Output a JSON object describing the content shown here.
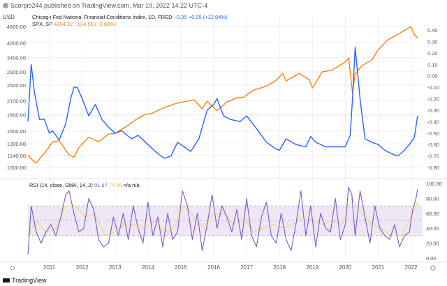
{
  "header": {
    "published": "Scorpio244 published on TradingView.com, Mar 19, 2022 14:22 UTC-4",
    "currency": "USD"
  },
  "legend": {
    "nfci": {
      "name": "Chicago Fed National Financial Conditions Index, 1D, FRED",
      "value": "−0.35",
      "change": "+0.05 (+12.04%)",
      "color": "#2962ff"
    },
    "spx": {
      "name": "SPX, SP",
      "value": "4204.32",
      "change": "−124.56 (−2.88%)",
      "color": "#ff7f0e"
    },
    "rsi": {
      "name": "RSI (14, close, SMA, 14, 2)",
      "value1": "91.67",
      "value2": "74.86",
      "value3": "n/a",
      "value4": "n/a",
      "color": "#7e57c2",
      "ma_color": "#f5d56b"
    }
  },
  "footer": {
    "brand": "TradingView"
  },
  "colors": {
    "grid": "#eeeeee",
    "rsi_band": "#ede7f6",
    "text": "#555555"
  },
  "chart_data": [
    {
      "type": "line",
      "left_axis": {
        "scale": "log",
        "ticks": [
          1000,
          1140,
          1300,
          1500,
          1800,
          2100,
          2500,
          2900,
          3400,
          4000,
          4800
        ],
        "tick_labels": [
          "1000.00",
          "1140.00",
          "1300.00",
          "1500.00",
          "1800.00",
          "2100.00",
          "2500.00",
          "2900.00",
          "3400.00",
          "4000.00",
          "4800.00"
        ]
      },
      "right_axis": {
        "ticks": [
          0.4,
          0.3,
          0.2,
          0.1,
          0.0,
          -0.1,
          -0.2,
          -0.3,
          -0.4,
          -0.5,
          -0.6,
          -0.7,
          -0.8
        ],
        "tick_labels": [
          "0.40",
          "0.30",
          "0.20",
          "0.10",
          "0.00",
          "-0.10",
          "-0.20",
          "-0.30",
          "-0.40",
          "-0.50",
          "-0.60",
          "-0.70",
          "-0.80"
        ]
      },
      "x_ticks": [
        "2011",
        "2012",
        "2013",
        "2014",
        "2015",
        "2016",
        "2017",
        "2018",
        "2019",
        "2020",
        "2021",
        "2022"
      ],
      "x_tick_years": [
        2011,
        2012,
        2013,
        2014,
        2015,
        2016,
        2017,
        2018,
        2019,
        2020,
        2021,
        2022
      ],
      "x_range": [
        2010.35,
        2022.35
      ],
      "series": [
        {
          "name": "SPX",
          "axis": "left",
          "color": "#ff7f0e",
          "x": [
            2010.35,
            2010.5,
            2010.6,
            2010.9,
            2011.1,
            2011.3,
            2011.6,
            2011.75,
            2011.9,
            2012.2,
            2012.5,
            2012.8,
            2013.0,
            2013.4,
            2013.6,
            2013.9,
            2014.1,
            2014.5,
            2014.9,
            2015.4,
            2015.65,
            2015.8,
            2016.1,
            2016.4,
            2016.7,
            2016.9,
            2017.2,
            2017.6,
            2017.9,
            2018.1,
            2018.2,
            2018.6,
            2018.9,
            2019.0,
            2019.3,
            2019.6,
            2020.0,
            2020.1,
            2020.22,
            2020.3,
            2020.5,
            2020.8,
            2021.0,
            2021.3,
            2021.6,
            2021.9,
            2022.0,
            2022.1,
            2022.2
          ],
          "y": [
            1150,
            1080,
            1050,
            1200,
            1330,
            1345,
            1150,
            1120,
            1250,
            1400,
            1330,
            1450,
            1460,
            1600,
            1690,
            1800,
            1820,
            1950,
            2050,
            2120,
            1920,
            2090,
            1880,
            2070,
            2170,
            2180,
            2360,
            2470,
            2640,
            2850,
            2620,
            2850,
            2650,
            2420,
            2900,
            2950,
            3240,
            3380,
            2300,
            2830,
            3100,
            3300,
            3700,
            4150,
            4400,
            4700,
            4790,
            4400,
            4204
          ]
        },
        {
          "name": "NFCI",
          "axis": "right",
          "color": "#2962ff",
          "x": [
            2010.35,
            2010.45,
            2010.55,
            2010.7,
            2010.85,
            2011.0,
            2011.1,
            2011.3,
            2011.5,
            2011.65,
            2011.75,
            2011.85,
            2012.0,
            2012.2,
            2012.4,
            2012.6,
            2012.8,
            2013.0,
            2013.2,
            2013.5,
            2013.7,
            2014.0,
            2014.3,
            2014.5,
            2014.7,
            2014.9,
            2015.1,
            2015.3,
            2015.55,
            2015.8,
            2016.0,
            2016.1,
            2016.3,
            2016.5,
            2016.8,
            2017.0,
            2017.3,
            2017.6,
            2017.9,
            2018.0,
            2018.2,
            2018.5,
            2018.8,
            2018.95,
            2019.1,
            2019.4,
            2019.7,
            2020.0,
            2020.15,
            2020.22,
            2020.3,
            2020.45,
            2020.6,
            2020.8,
            2021.0,
            2021.2,
            2021.4,
            2021.6,
            2021.8,
            2022.0,
            2022.1,
            2022.2
          ],
          "y": [
            -0.4,
            0.1,
            -0.15,
            -0.38,
            -0.38,
            -0.5,
            -0.48,
            -0.56,
            -0.42,
            -0.2,
            -0.1,
            -0.1,
            -0.2,
            -0.35,
            -0.25,
            -0.38,
            -0.45,
            -0.5,
            -0.48,
            -0.55,
            -0.52,
            -0.6,
            -0.68,
            -0.72,
            -0.7,
            -0.58,
            -0.62,
            -0.66,
            -0.55,
            -0.3,
            -0.25,
            -0.2,
            -0.35,
            -0.38,
            -0.4,
            -0.35,
            -0.46,
            -0.58,
            -0.64,
            -0.65,
            -0.55,
            -0.6,
            -0.62,
            -0.53,
            -0.58,
            -0.62,
            -0.62,
            -0.62,
            -0.52,
            -0.2,
            0.25,
            -0.2,
            -0.55,
            -0.58,
            -0.6,
            -0.65,
            -0.68,
            -0.7,
            -0.65,
            -0.58,
            -0.54,
            -0.35
          ]
        }
      ]
    },
    {
      "type": "line",
      "title": "RSI (14, close, SMA, 14, 2)",
      "y_axis": {
        "range": [
          0,
          100
        ],
        "ticks": [
          0,
          20,
          40,
          60,
          80,
          100
        ],
        "tick_labels": [
          "0.00",
          "20.00",
          "40.00",
          "60.00",
          "80.00",
          "100.00"
        ],
        "band": [
          30,
          70
        ],
        "band_ticks": [
          30,
          50,
          70
        ]
      },
      "series": [
        {
          "name": "RSI",
          "color": "#7e57c2",
          "x": [
            2010.35,
            2010.45,
            2010.6,
            2010.75,
            2010.9,
            2011.05,
            2011.2,
            2011.35,
            2011.5,
            2011.6,
            2011.75,
            2011.9,
            2012.05,
            2012.2,
            2012.35,
            2012.5,
            2012.65,
            2012.8,
            2012.95,
            2013.1,
            2013.25,
            2013.4,
            2013.55,
            2013.7,
            2013.85,
            2014.0,
            2014.15,
            2014.3,
            2014.45,
            2014.6,
            2014.75,
            2014.9,
            2015.05,
            2015.2,
            2015.35,
            2015.5,
            2015.65,
            2015.8,
            2015.95,
            2016.1,
            2016.25,
            2016.4,
            2016.55,
            2016.7,
            2016.85,
            2017.0,
            2017.15,
            2017.3,
            2017.45,
            2017.6,
            2017.75,
            2017.9,
            2018.05,
            2018.2,
            2018.35,
            2018.5,
            2018.65,
            2018.8,
            2018.95,
            2019.1,
            2019.25,
            2019.4,
            2019.55,
            2019.7,
            2019.85,
            2020.0,
            2020.1,
            2020.2,
            2020.3,
            2020.45,
            2020.6,
            2020.75,
            2020.9,
            2021.05,
            2021.2,
            2021.35,
            2021.5,
            2021.65,
            2021.8,
            2021.95,
            2022.05,
            2022.15,
            2022.2
          ],
          "y": [
            5,
            70,
            35,
            20,
            35,
            45,
            30,
            55,
            85,
            90,
            60,
            35,
            40,
            80,
            65,
            25,
            15,
            20,
            55,
            30,
            60,
            25,
            70,
            40,
            20,
            75,
            30,
            55,
            15,
            60,
            25,
            35,
            90,
            70,
            25,
            60,
            10,
            45,
            85,
            40,
            70,
            55,
            35,
            65,
            25,
            80,
            30,
            15,
            55,
            75,
            30,
            20,
            60,
            25,
            10,
            45,
            90,
            30,
            70,
            15,
            60,
            40,
            35,
            80,
            25,
            45,
            95,
            85,
            30,
            90,
            55,
            20,
            70,
            40,
            30,
            25,
            45,
            15,
            30,
            35,
            65,
            80,
            92
          ]
        },
        {
          "name": "RSI-based MA",
          "color": "#f5d56b",
          "x": [
            2010.35,
            2010.6,
            2010.9,
            2011.2,
            2011.5,
            2011.8,
            2012.1,
            2012.4,
            2012.7,
            2013.0,
            2013.3,
            2013.6,
            2013.9,
            2014.2,
            2014.5,
            2014.8,
            2015.1,
            2015.4,
            2015.7,
            2016.0,
            2016.3,
            2016.6,
            2016.9,
            2017.2,
            2017.5,
            2017.8,
            2018.1,
            2018.4,
            2018.7,
            2019.0,
            2019.3,
            2019.6,
            2019.9,
            2020.2,
            2020.5,
            2020.8,
            2021.1,
            2021.4,
            2021.7,
            2022.0,
            2022.2
          ],
          "y": [
            30,
            50,
            35,
            40,
            70,
            70,
            55,
            60,
            30,
            35,
            45,
            45,
            40,
            50,
            35,
            40,
            70,
            55,
            40,
            60,
            60,
            45,
            55,
            35,
            40,
            45,
            40,
            45,
            55,
            50,
            45,
            50,
            45,
            80,
            60,
            45,
            40,
            30,
            30,
            55,
            75
          ]
        }
      ]
    }
  ]
}
